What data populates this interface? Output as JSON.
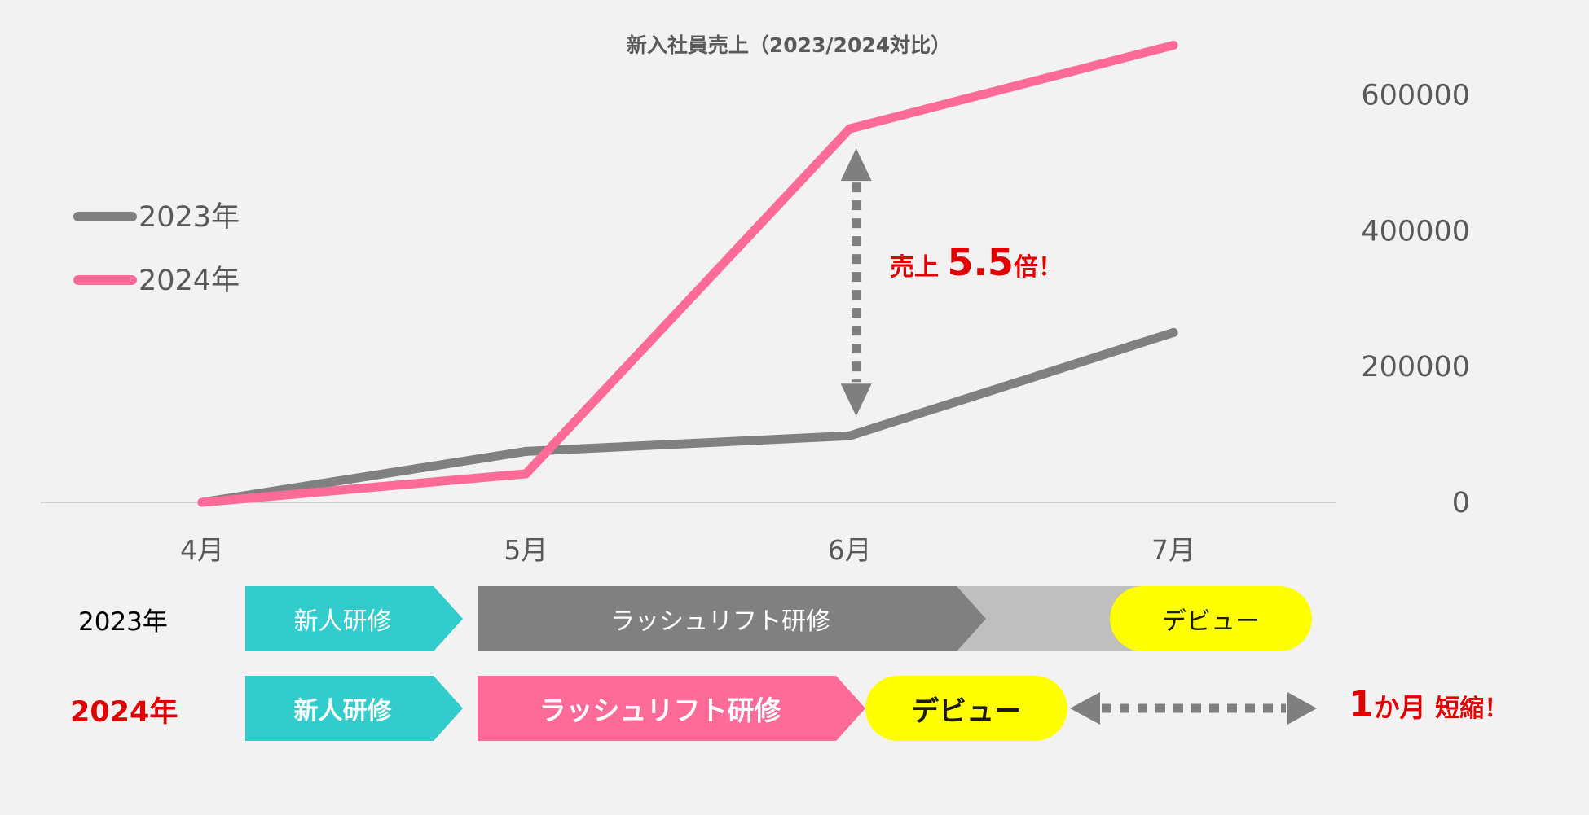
{
  "chart_data": {
    "type": "line",
    "title": "新入社員売上（2023/2024対比）",
    "categories": [
      "4月",
      "5月",
      "6月",
      "7月"
    ],
    "series": [
      {
        "name": "2023年",
        "color": "#808080",
        "values": [
          0,
          75000,
          98000,
          250000
        ]
      },
      {
        "name": "2024年",
        "color": "#ff6b99",
        "values": [
          0,
          42000,
          550000,
          673000
        ]
      }
    ],
    "ylim": [
      0,
      700000
    ],
    "yticks": [
      0,
      200000,
      400000,
      600000
    ],
    "ytick_labels": [
      "0",
      "200000",
      "400000",
      "600000"
    ],
    "y_axis_position": "right",
    "grid": false,
    "legend_position": "left",
    "annotation": {
      "prefix": "売上",
      "value": "5.5",
      "suffix": "倍！",
      "color": "#e00000"
    }
  },
  "timeline": {
    "rows": [
      {
        "label": "2023年",
        "steps": [
          {
            "label": "新人研修",
            "color": "#33cccc"
          },
          {
            "label": "ラッシュリフト研修",
            "color": "#808080"
          },
          {
            "label": "デビュー",
            "color": "#ffff00"
          }
        ]
      },
      {
        "label": "2024年",
        "label_color": "#e00000",
        "steps": [
          {
            "label": "新人研修",
            "color": "#33cccc"
          },
          {
            "label": "ラッシュリフト研修",
            "color": "#ff6b99"
          },
          {
            "label": "デビュー",
            "color": "#ffff00"
          }
        ]
      }
    ],
    "gap_color": "#bfbfbf",
    "shortening": {
      "number": "1",
      "unit": "か月",
      "word": "短縮！"
    }
  }
}
